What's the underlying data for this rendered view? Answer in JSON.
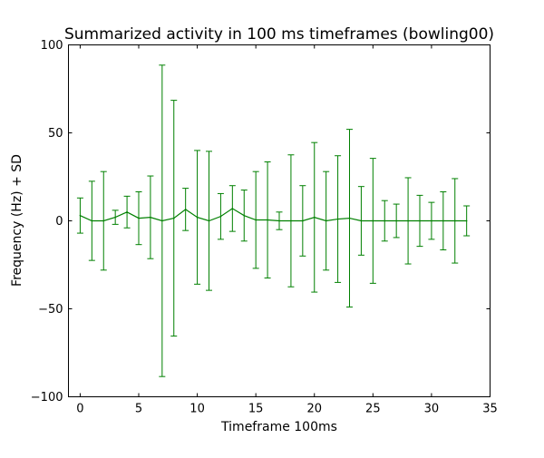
{
  "chart_data": {
    "type": "line",
    "title": "Summarized activity in 100 ms timeframes (bowling00)",
    "xlabel": "Timeframe 100ms",
    "ylabel": "Frequency (Hz) + SD",
    "xlim": [
      -1,
      35
    ],
    "ylim": [
      -100,
      100
    ],
    "xticks": [
      0,
      5,
      10,
      15,
      20,
      25,
      30,
      35
    ],
    "yticks": [
      -100,
      -50,
      0,
      50,
      100
    ],
    "xtick_labels": [
      "0",
      "5",
      "10",
      "15",
      "20",
      "25",
      "30",
      "35"
    ],
    "ytick_labels": [
      "−100",
      "−50",
      "0",
      "50",
      "100"
    ],
    "grid": false,
    "series": [
      {
        "color": "#008000",
        "x": [
          0,
          1,
          2,
          3,
          4,
          5,
          6,
          7,
          8,
          9,
          10,
          11,
          12,
          13,
          14,
          15,
          16,
          17,
          18,
          19,
          20,
          21,
          22,
          23,
          24,
          25,
          26,
          27,
          28,
          29,
          30,
          31,
          32,
          33
        ],
        "y": [
          3,
          0,
          0,
          2,
          5,
          1.5,
          2,
          0,
          1.5,
          6.5,
          2,
          0,
          2.5,
          7,
          3,
          0.5,
          0.5,
          0,
          0,
          0,
          2,
          0,
          1,
          1.5,
          0,
          0,
          0,
          0,
          0,
          0,
          0,
          0,
          0,
          0
        ],
        "error": [
          10,
          22.5,
          28,
          4,
          9,
          15,
          23.5,
          88.5,
          67,
          12,
          38,
          39.5,
          13,
          13,
          14.5,
          27.5,
          33,
          5,
          37.5,
          20,
          42.5,
          28,
          36,
          50.5,
          19.5,
          35.5,
          11.5,
          9.5,
          24.5,
          14.5,
          10.5,
          16.5,
          24,
          8.5
        ]
      }
    ]
  }
}
